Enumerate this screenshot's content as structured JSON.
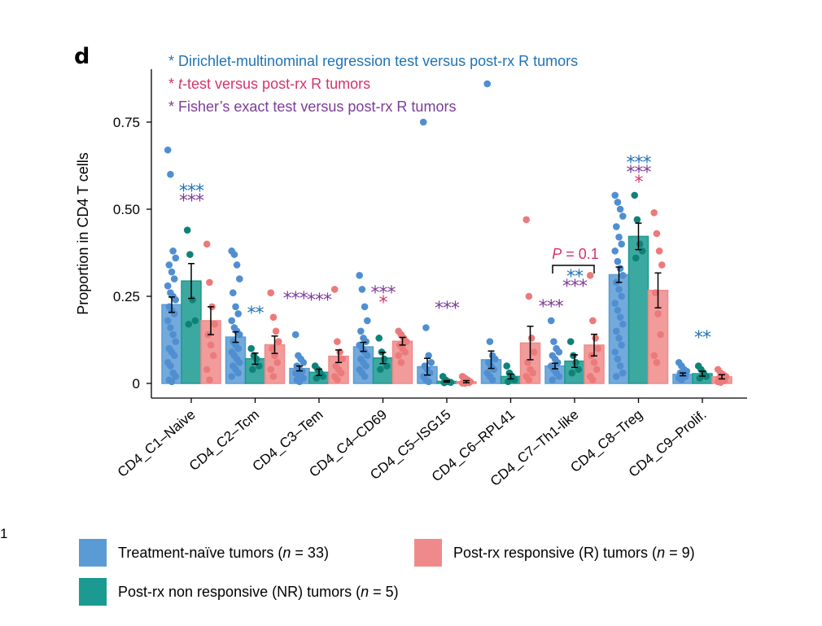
{
  "panel_label": "d",
  "stray_label": "1",
  "colors": {
    "naive": "#5b9bd5",
    "naive_point": "#4f8fd1",
    "nr": "#1a9a90",
    "nr_point": "#0f8277",
    "r": "#f08a8a",
    "r_point": "#ec7a7a",
    "blue_text": "#1f73b7",
    "pink_text": "#d6336c",
    "purple_text": "#7d3c98"
  },
  "notes": [
    {
      "prefix": "* ",
      "italic": "",
      "text": "Dirichlet-multinominal regression test versus post-rx R tumors",
      "color": "#1f73b7"
    },
    {
      "prefix": "* ",
      "italic": "t",
      "text": "-test versus post-rx R tumors",
      "color": "#d6336c"
    },
    {
      "prefix": "* ",
      "italic": "",
      "text": "Fisher’s exact test versus post-rx R tumors",
      "color": "#7d3c98"
    }
  ],
  "legend": [
    {
      "label": "Treatment-naïve tumors (",
      "n_var": "n",
      "n_val": " = 33)",
      "color": "#5b9bd5"
    },
    {
      "label": "Post-rx responsive (R) tumors (",
      "n_var": "n",
      "n_val": " = 9)",
      "color": "#f08a8a"
    },
    {
      "label": "Post-rx non responsive (NR) tumors (",
      "n_var": "n",
      "n_val": " = 5)",
      "color": "#1a9a90"
    }
  ],
  "chart_data": {
    "type": "bar",
    "title": "",
    "xlabel": "",
    "ylabel": "Proportion in CD4 T cells",
    "ylim": [
      0,
      0.9
    ],
    "yticks": [
      0,
      0.25,
      0.5,
      0.75
    ],
    "ytick_labels": [
      "0",
      "0.25",
      "0.50",
      "0.75"
    ],
    "categories": [
      "CD4_C1–Naive",
      "CD4_C2–Tcm",
      "CD4_C3–Tem",
      "CD4_C4–CD69",
      "CD4_C5–ISG15",
      "CD4_C6–RPL41",
      "CD4_C7–Th1-like",
      "CD4_C8–Treg",
      "CD4_C9–Prolif."
    ],
    "series": [
      {
        "name": "Treatment-naïve tumors (n = 33)",
        "values": [
          0.226,
          0.133,
          0.043,
          0.105,
          0.048,
          0.068,
          0.05,
          0.312,
          0.026
        ],
        "errors": [
          0.022,
          0.015,
          0.007,
          0.013,
          0.024,
          0.025,
          0.008,
          0.022,
          0.004
        ],
        "points": [
          [
            0.67,
            0.6,
            0.38,
            0.36,
            0.34,
            0.32,
            0.3,
            0.28,
            0.26,
            0.25,
            0.24,
            0.22,
            0.21,
            0.2,
            0.18,
            0.16,
            0.14,
            0.12,
            0.1,
            0.09,
            0.08,
            0.06,
            0.05,
            0.03,
            0.02,
            0.01,
            0.005
          ],
          [
            0.38,
            0.37,
            0.34,
            0.3,
            0.26,
            0.22,
            0.2,
            0.18,
            0.16,
            0.15,
            0.14,
            0.12,
            0.11,
            0.1,
            0.09,
            0.08,
            0.07,
            0.06,
            0.05,
            0.04,
            0.03,
            0.02
          ],
          [
            0.14,
            0.08,
            0.07,
            0.06,
            0.05,
            0.04,
            0.035,
            0.03,
            0.025,
            0.02,
            0.015,
            0.01,
            0.005
          ],
          [
            0.31,
            0.27,
            0.22,
            0.18,
            0.15,
            0.13,
            0.12,
            0.11,
            0.1,
            0.09,
            0.08,
            0.07,
            0.06,
            0.05,
            0.04,
            0.03,
            0.02
          ],
          [
            0.75,
            0.16,
            0.08,
            0.06,
            0.05,
            0.04,
            0.03,
            0.02,
            0.01,
            0.005
          ],
          [
            0.86,
            0.12,
            0.08,
            0.07,
            0.06,
            0.05,
            0.04,
            0.03,
            0.02,
            0.01
          ],
          [
            0.18,
            0.12,
            0.1,
            0.09,
            0.08,
            0.07,
            0.06,
            0.05,
            0.04,
            0.03,
            0.02,
            0.01
          ],
          [
            0.54,
            0.52,
            0.5,
            0.48,
            0.45,
            0.42,
            0.4,
            0.38,
            0.35,
            0.33,
            0.31,
            0.29,
            0.27,
            0.25,
            0.23,
            0.21,
            0.19,
            0.17,
            0.15,
            0.13,
            0.11,
            0.09,
            0.07,
            0.05,
            0.03,
            0.02
          ],
          [
            0.06,
            0.05,
            0.04,
            0.035,
            0.03,
            0.025,
            0.02,
            0.015,
            0.01
          ]
        ]
      },
      {
        "name": "Post-rx non responsive (NR) tumors (n = 5)",
        "values": [
          0.294,
          0.071,
          0.032,
          0.073,
          0.006,
          0.02,
          0.064,
          0.422,
          0.028
        ],
        "errors": [
          0.05,
          0.016,
          0.009,
          0.016,
          0.002,
          0.007,
          0.018,
          0.038,
          0.007
        ],
        "points": [
          [
            0.44,
            0.37,
            0.24,
            0.18,
            0.17
          ],
          [
            0.1,
            0.08,
            0.07,
            0.05,
            0.04
          ],
          [
            0.05,
            0.04,
            0.03,
            0.02,
            0.015
          ],
          [
            0.13,
            0.09,
            0.07,
            0.05,
            0.04
          ],
          [
            0.02,
            0.01,
            0.005,
            0.003,
            0.002
          ],
          [
            0.05,
            0.03,
            0.02,
            0.01,
            0.005
          ],
          [
            0.12,
            0.08,
            0.06,
            0.04,
            0.03
          ],
          [
            0.54,
            0.47,
            0.4,
            0.38,
            0.36
          ],
          [
            0.05,
            0.04,
            0.03,
            0.02,
            0.015
          ]
        ]
      },
      {
        "name": "Post-rx responsive (R) tumors (n = 9)",
        "values": [
          0.18,
          0.111,
          0.078,
          0.121,
          0.005,
          0.116,
          0.11,
          0.267,
          0.019
        ],
        "errors": [
          0.04,
          0.025,
          0.018,
          0.011,
          0.003,
          0.048,
          0.031,
          0.05,
          0.006
        ],
        "points": [
          [
            0.4,
            0.29,
            0.22,
            0.17,
            0.14,
            0.11,
            0.08,
            0.04,
            0.01
          ],
          [
            0.26,
            0.19,
            0.15,
            0.12,
            0.1,
            0.08,
            0.06,
            0.04,
            0.02
          ],
          [
            0.27,
            0.12,
            0.09,
            0.07,
            0.05,
            0.04,
            0.03,
            0.02,
            0.01
          ],
          [
            0.15,
            0.14,
            0.13,
            0.12,
            0.11,
            0.1,
            0.09,
            0.08,
            0.06
          ],
          [
            0.02,
            0.015,
            0.01,
            0.005,
            0.004,
            0.003,
            0.002,
            0.001,
            0.0
          ],
          [
            0.47,
            0.25,
            0.13,
            0.09,
            0.06,
            0.04,
            0.03,
            0.02,
            0.01
          ],
          [
            0.31,
            0.18,
            0.13,
            0.1,
            0.08,
            0.06,
            0.04,
            0.02,
            0.01
          ],
          [
            0.49,
            0.43,
            0.38,
            0.34,
            0.26,
            0.2,
            0.14,
            0.08,
            0.06
          ],
          [
            0.04,
            0.03,
            0.025,
            0.02,
            0.015,
            0.01,
            0.008,
            0.005,
            0.003
          ]
        ]
      }
    ],
    "annotations": [
      {
        "category": 0,
        "marks": [
          {
            "text": "***",
            "color": "#1f73b7"
          },
          {
            "text": "***",
            "color": "#7d3c98"
          }
        ]
      },
      {
        "category": 1,
        "marks": [
          {
            "text": "**",
            "color": "#1f73b7"
          }
        ]
      },
      {
        "category": 2,
        "marks": [
          {
            "text": "***",
            "color": "#7d3c98",
            "offset": -0.5
          },
          {
            "text": "***",
            "color": "#7d3c98",
            "offset": 0.0
          }
        ]
      },
      {
        "category": 3,
        "marks": [
          {
            "text": "***",
            "color": "#7d3c98"
          },
          {
            "text": "*",
            "color": "#d6336c"
          }
        ]
      },
      {
        "category": 4,
        "marks": [
          {
            "text": "***",
            "color": "#7d3c98"
          }
        ]
      },
      {
        "category": 6,
        "marks": [
          {
            "text": "***",
            "color": "#7d3c98",
            "offset": -0.5
          },
          {
            "text": "**",
            "color": "#1f73b7"
          },
          {
            "text": "***",
            "color": "#7d3c98"
          }
        ]
      },
      {
        "category": 7,
        "marks": [
          {
            "text": "***",
            "color": "#1f73b7"
          },
          {
            "text": "***",
            "color": "#7d3c98"
          },
          {
            "text": "*",
            "color": "#d6336c"
          }
        ]
      },
      {
        "category": 8,
        "marks": [
          {
            "text": "**",
            "color": "#1f73b7"
          }
        ]
      }
    ],
    "bracket": {
      "category": 6,
      "var": "P",
      "value": " = 0.1",
      "color": "#d6336c"
    }
  }
}
